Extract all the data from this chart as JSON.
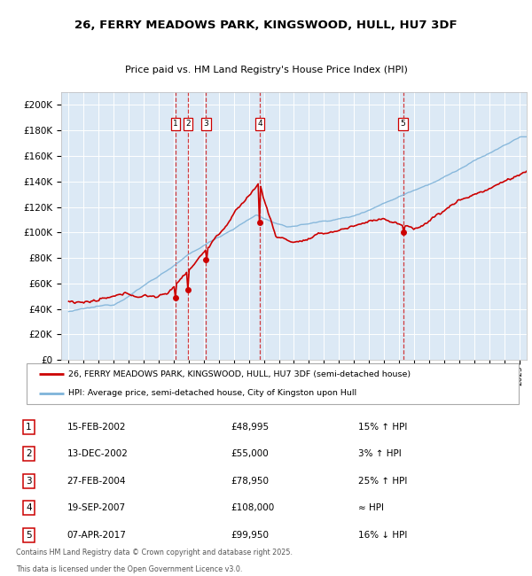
{
  "title": "26, FERRY MEADOWS PARK, KINGSWOOD, HULL, HU7 3DF",
  "subtitle": "Price paid vs. HM Land Registry's House Price Index (HPI)",
  "legend_line1": "26, FERRY MEADOWS PARK, KINGSWOOD, HULL, HU7 3DF (semi-detached house)",
  "legend_line2": "HPI: Average price, semi-detached house, City of Kingston upon Hull",
  "footer1": "Contains HM Land Registry data © Crown copyright and database right 2025.",
  "footer2": "This data is licensed under the Open Government Licence v3.0.",
  "transactions": [
    {
      "num": 1,
      "date": "15-FEB-2002",
      "price": 48995,
      "pct": "15%",
      "dir": "↑",
      "year": 2002.12
    },
    {
      "num": 2,
      "date": "13-DEC-2002",
      "price": 55000,
      "pct": "3%",
      "dir": "↑",
      "year": 2002.95
    },
    {
      "num": 3,
      "date": "27-FEB-2004",
      "price": 78950,
      "pct": "25%",
      "dir": "↑",
      "year": 2004.15
    },
    {
      "num": 4,
      "date": "19-SEP-2007",
      "price": 108000,
      "pct": "≈",
      "dir": "",
      "year": 2007.72
    },
    {
      "num": 5,
      "date": "07-APR-2017",
      "price": 99950,
      "pct": "16%",
      "dir": "↓",
      "year": 2017.27
    }
  ],
  "ylim": [
    0,
    210000
  ],
  "xlim": [
    1994.5,
    2025.5
  ],
  "yticks": [
    0,
    20000,
    40000,
    60000,
    80000,
    100000,
    120000,
    140000,
    160000,
    180000,
    200000
  ],
  "ytick_labels": [
    "£0",
    "£20K",
    "£40K",
    "£60K",
    "£80K",
    "£100K",
    "£120K",
    "£140K",
    "£160K",
    "£180K",
    "£200K"
  ],
  "bg_color": "#dce9f5",
  "grid_color": "#ffffff",
  "red_line_color": "#cc0000",
  "blue_line_color": "#7fb3d9",
  "marker_color": "#cc0000",
  "vline_color": "#cc0000"
}
